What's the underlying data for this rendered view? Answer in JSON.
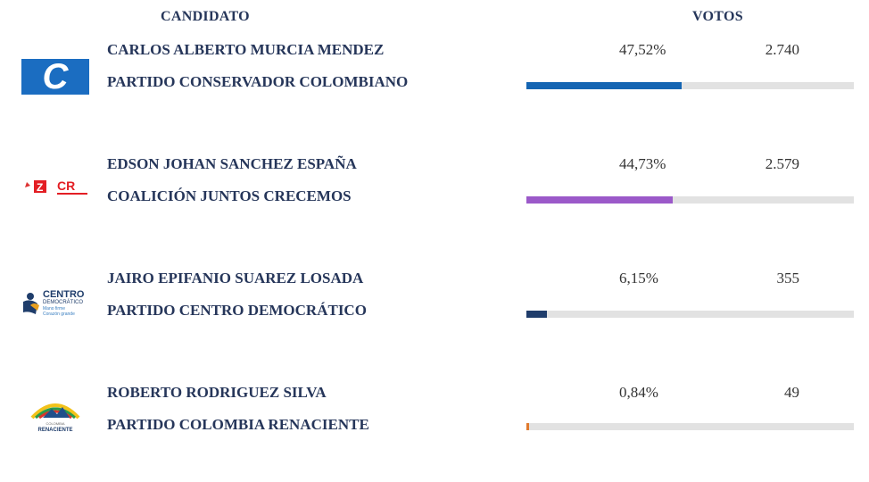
{
  "header": {
    "candidate_label": "CANDIDATO",
    "votes_label": "VOTOS"
  },
  "colors": {
    "text": "#26365a",
    "bar_bg": "#e2e2e2"
  },
  "candidates": [
    {
      "name": "CARLOS ALBERTO MURCIA MENDEZ",
      "party": "PARTIDO CONSERVADOR COLOMBIANO",
      "percent": "47,52%",
      "votes": "2.740",
      "share": 0.4752,
      "color": "#1565b3",
      "logo": "conservador-logo"
    },
    {
      "name": "EDSON JOHAN SANCHEZ ESPAÑA",
      "party": "COALICIÓN JUNTOS CRECEMOS",
      "percent": "44,73%",
      "votes": "2.579",
      "share": 0.4473,
      "color": "#9b59c9",
      "logo": "juntos-crecemos-logo"
    },
    {
      "name": "JAIRO EPIFANIO SUAREZ LOSADA",
      "party": "PARTIDO CENTRO DEMOCRÁTICO",
      "percent": "6,15%",
      "votes": "355",
      "share": 0.0615,
      "color": "#1f3d6b",
      "logo": "centro-democratico-logo",
      "logo_text": {
        "line1": "CENTRO",
        "line2": "DEMOCRÁTICO",
        "line3": "Mano firme",
        "line4": "Corazón grande"
      }
    },
    {
      "name": "ROBERTO RODRIGUEZ SILVA",
      "party": "PARTIDO COLOMBIA RENACIENTE",
      "percent": "0,84%",
      "votes": "49",
      "share": 0.0084,
      "color": "#e07a2e",
      "logo": "colombia-renaciente-logo",
      "logo_text": {
        "line1": "COLOMBIA",
        "line2": "RENACIENTE"
      }
    }
  ]
}
